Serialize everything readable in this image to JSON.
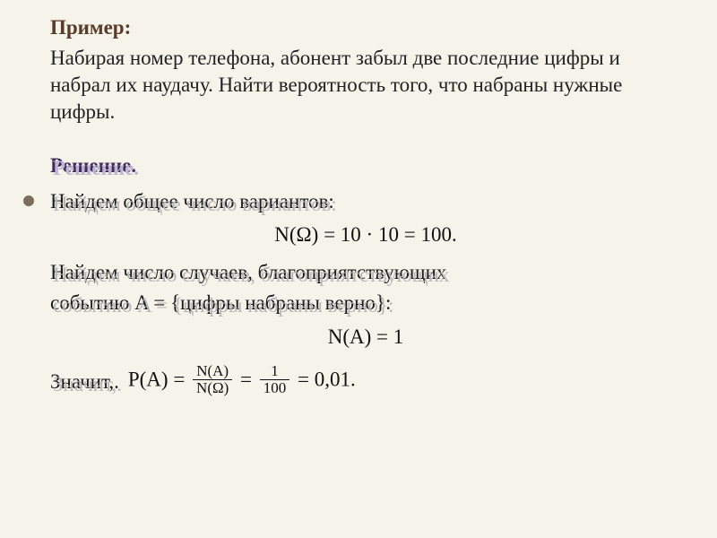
{
  "colors": {
    "background": "#f5f3ea",
    "title": "#5a3a28",
    "body_text": "#222222",
    "formula_text": "#111111",
    "solution_label": "#3e2a5c",
    "shadow_overlay": "#b8b8b8",
    "solution_shadow": "#bfb7d0",
    "bullet": "#7a6f5a"
  },
  "fonts": {
    "body_family": "Georgia, Times New Roman, serif",
    "math_family": "Cambria Math, Georgia, serif",
    "body_size_pt": 17,
    "title_size_pt": 17,
    "fraction_size_pt": 13
  },
  "title": "Пример:",
  "problem": "Набирая номер телефона, абонент забыл две последние цифры и набрал их наудачу. Найти вероятность того, что набраны нужные цифры.",
  "solution_label": "Решение.",
  "step1_text": "Найдем общее число вариантов:",
  "formula1": {
    "lhs": "N(Ω)",
    "op1": "10 · 10",
    "result": "100",
    "full": "N(Ω) = 10 · 10 = 100."
  },
  "step2_line1": "Найдем число случаев, благоприятствующих",
  "step2_line2": "событию A = {цифры набраны верно}:",
  "formula2": {
    "lhs": "N(A)",
    "result": "1",
    "full": "N(A) = 1"
  },
  "final_prefix": "Значит,",
  "final_suffix_shadow": ".",
  "formula3": {
    "lhs": "P(A)",
    "frac1_num": "N(A)",
    "frac1_den": "N(Ω)",
    "frac2_num": "1",
    "frac2_den": "100",
    "result": "0,01",
    "trailing": "."
  }
}
